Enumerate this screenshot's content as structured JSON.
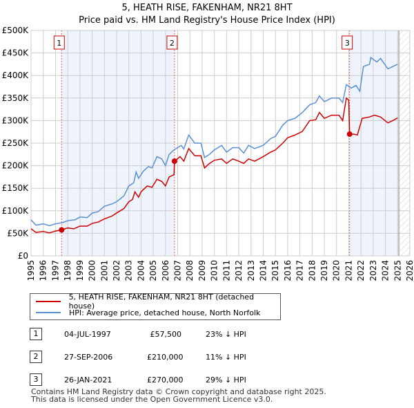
{
  "title_line1": "5, HEATH RISE, FAKENHAM, NR21 8HT",
  "title_line2": "Price paid vs. HM Land Registry's House Price Index (HPI)",
  "chart_data": {
    "type": "line",
    "xlim": [
      1995,
      2026
    ],
    "ylim": [
      0,
      500000
    ],
    "yticks": [
      {
        "v": 0,
        "label": "£0"
      },
      {
        "v": 50000,
        "label": "£50K"
      },
      {
        "v": 100000,
        "label": "£100K"
      },
      {
        "v": 150000,
        "label": "£150K"
      },
      {
        "v": 200000,
        "label": "£200K"
      },
      {
        "v": 250000,
        "label": "£250K"
      },
      {
        "v": 300000,
        "label": "£300K"
      },
      {
        "v": 350000,
        "label": "£350K"
      },
      {
        "v": 400000,
        "label": "£400K"
      },
      {
        "v": 450000,
        "label": "£450K"
      },
      {
        "v": 500000,
        "label": "£500K"
      }
    ],
    "xticks": [
      "1995",
      "1996",
      "1997",
      "1998",
      "1999",
      "2000",
      "2001",
      "2002",
      "2003",
      "2004",
      "2005",
      "2006",
      "2007",
      "2008",
      "2009",
      "2010",
      "2011",
      "2012",
      "2013",
      "2014",
      "2015",
      "2016",
      "2017",
      "2018",
      "2019",
      "2020",
      "2021",
      "2022",
      "2023",
      "2024",
      "2025",
      "2026"
    ],
    "shaded": [
      [
        1997.5,
        2006.74
      ],
      [
        2021.07,
        2025.1
      ]
    ],
    "hatched_from": 2025.1,
    "series": [
      {
        "name": "5, HEATH RISE, FAKENHAM, NR21 8HT (detached house)",
        "color": "#cc0000",
        "points": [
          [
            1995,
            60000
          ],
          [
            1995.4,
            52000
          ],
          [
            1996,
            54000
          ],
          [
            1996.5,
            51000
          ],
          [
            1997,
            55000
          ],
          [
            1997.5,
            57500
          ],
          [
            1998,
            62000
          ],
          [
            1998.5,
            60000
          ],
          [
            1999,
            66000
          ],
          [
            1999.6,
            66000
          ],
          [
            2000,
            72000
          ],
          [
            2000.5,
            75000
          ],
          [
            2001,
            82000
          ],
          [
            2001.6,
            88000
          ],
          [
            2002,
            95000
          ],
          [
            2002.6,
            105000
          ],
          [
            2003,
            120000
          ],
          [
            2003.3,
            125000
          ],
          [
            2003.5,
            142000
          ],
          [
            2003.8,
            130000
          ],
          [
            2004,
            142000
          ],
          [
            2004.5,
            155000
          ],
          [
            2004.9,
            152000
          ],
          [
            2005.3,
            170000
          ],
          [
            2005.7,
            165000
          ],
          [
            2006,
            155000
          ],
          [
            2006.3,
            175000
          ],
          [
            2006.7,
            180000
          ],
          [
            2006.74,
            210000
          ],
          [
            2007.2,
            220000
          ],
          [
            2007.5,
            210000
          ],
          [
            2007.9,
            238000
          ],
          [
            2008.4,
            222000
          ],
          [
            2008.9,
            222000
          ],
          [
            2009.2,
            195000
          ],
          [
            2009.6,
            205000
          ],
          [
            2010,
            212000
          ],
          [
            2010.6,
            215000
          ],
          [
            2011,
            205000
          ],
          [
            2011.5,
            215000
          ],
          [
            2012,
            210000
          ],
          [
            2012.4,
            205000
          ],
          [
            2012.8,
            215000
          ],
          [
            2013.3,
            210000
          ],
          [
            2014,
            220000
          ],
          [
            2014.6,
            230000
          ],
          [
            2015,
            235000
          ],
          [
            2015.6,
            250000
          ],
          [
            2016,
            262000
          ],
          [
            2016.6,
            268000
          ],
          [
            2017.2,
            276000
          ],
          [
            2017.8,
            300000
          ],
          [
            2018.3,
            302000
          ],
          [
            2018.6,
            318000
          ],
          [
            2019,
            305000
          ],
          [
            2019.6,
            312000
          ],
          [
            2020.2,
            312000
          ],
          [
            2020.5,
            300000
          ],
          [
            2020.8,
            350000
          ],
          [
            2021.0,
            345000
          ],
          [
            2021.07,
            270000
          ],
          [
            2021.4,
            270000
          ],
          [
            2021.7,
            268000
          ],
          [
            2022.1,
            305000
          ],
          [
            2022.7,
            308000
          ],
          [
            2023.1,
            312000
          ],
          [
            2023.6,
            308000
          ],
          [
            2024.2,
            295000
          ],
          [
            2024.6,
            300000
          ],
          [
            2025,
            306000
          ]
        ]
      },
      {
        "name": "HPI: Average price, detached house, North Norfolk",
        "color": "#5b8fd4",
        "points": [
          [
            1995,
            80000
          ],
          [
            1995.4,
            68000
          ],
          [
            1996,
            71000
          ],
          [
            1996.5,
            67000
          ],
          [
            1997,
            71000
          ],
          [
            1997.6,
            74000
          ],
          [
            1998,
            78000
          ],
          [
            1998.6,
            80000
          ],
          [
            1999,
            86000
          ],
          [
            1999.6,
            85000
          ],
          [
            2000,
            95000
          ],
          [
            2000.5,
            98000
          ],
          [
            2001,
            110000
          ],
          [
            2001.6,
            115000
          ],
          [
            2002,
            120000
          ],
          [
            2002.6,
            133000
          ],
          [
            2003,
            155000
          ],
          [
            2003.4,
            162000
          ],
          [
            2003.6,
            186000
          ],
          [
            2003.8,
            172000
          ],
          [
            2004.2,
            188000
          ],
          [
            2004.6,
            198000
          ],
          [
            2004.9,
            195000
          ],
          [
            2005.3,
            220000
          ],
          [
            2005.7,
            215000
          ],
          [
            2006,
            200000
          ],
          [
            2006.3,
            225000
          ],
          [
            2006.7,
            235000
          ],
          [
            2007,
            240000
          ],
          [
            2007.3,
            245000
          ],
          [
            2007.5,
            237000
          ],
          [
            2007.9,
            268000
          ],
          [
            2008.4,
            250000
          ],
          [
            2008.9,
            250000
          ],
          [
            2009.2,
            218000
          ],
          [
            2009.6,
            225000
          ],
          [
            2010,
            235000
          ],
          [
            2010.6,
            245000
          ],
          [
            2011,
            230000
          ],
          [
            2011.5,
            240000
          ],
          [
            2012,
            240000
          ],
          [
            2012.4,
            228000
          ],
          [
            2012.8,
            245000
          ],
          [
            2013.3,
            238000
          ],
          [
            2014,
            245000
          ],
          [
            2014.6,
            260000
          ],
          [
            2015,
            265000
          ],
          [
            2015.6,
            290000
          ],
          [
            2016,
            300000
          ],
          [
            2016.6,
            305000
          ],
          [
            2017.2,
            318000
          ],
          [
            2017.8,
            335000
          ],
          [
            2018.3,
            340000
          ],
          [
            2018.6,
            355000
          ],
          [
            2019,
            342000
          ],
          [
            2019.6,
            350000
          ],
          [
            2020.2,
            350000
          ],
          [
            2020.5,
            340000
          ],
          [
            2020.8,
            380000
          ],
          [
            2021.2,
            372000
          ],
          [
            2021.6,
            378000
          ],
          [
            2021.9,
            365000
          ],
          [
            2022.2,
            420000
          ],
          [
            2022.7,
            425000
          ],
          [
            2022.8,
            440000
          ],
          [
            2023.3,
            430000
          ],
          [
            2023.6,
            438000
          ],
          [
            2024.2,
            415000
          ],
          [
            2024.6,
            420000
          ],
          [
            2025,
            425000
          ]
        ]
      }
    ],
    "sales": [
      {
        "id": "1",
        "year": 1997.5,
        "price": 57500
      },
      {
        "id": "2",
        "year": 2006.74,
        "price": 210000
      },
      {
        "id": "3",
        "year": 2021.07,
        "price": 270000
      }
    ]
  },
  "legend": {
    "red": "5, HEATH RISE, FAKENHAM, NR21 8HT (detached house)",
    "blue": "HPI: Average price, detached house, North Norfolk"
  },
  "transactions": [
    {
      "num": "1",
      "date": "04-JUL-1997",
      "price": "£57,500",
      "diff": "23% ↓ HPI"
    },
    {
      "num": "2",
      "date": "27-SEP-2006",
      "price": "£210,000",
      "diff": "11% ↓ HPI"
    },
    {
      "num": "3",
      "date": "26-JAN-2021",
      "price": "£270,000",
      "diff": "29% ↓ HPI"
    }
  ],
  "footer1": "Contains HM Land Registry data © Crown copyright and database right 2025.",
  "footer2": "This data is licensed under the Open Government Licence v3.0."
}
